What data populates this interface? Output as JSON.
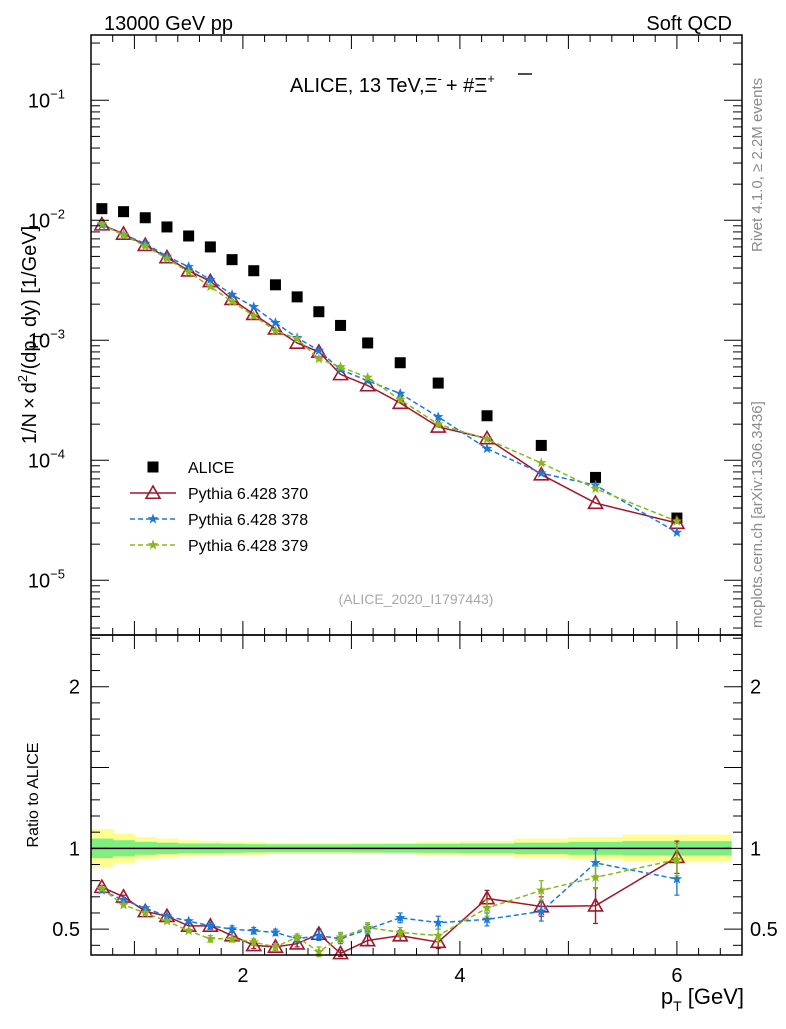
{
  "header": {
    "left": "13000 GeV pp",
    "right": "Soft QCD"
  },
  "side_labels": {
    "rivet": "Rivet 4.1.0, ≥ 2.2M events",
    "mcplots": "mcplots.cern.ch [arXiv:1306.3436]"
  },
  "chart_data": [
    {
      "type": "scatter",
      "title": "ALICE, 13 TeV, Ξ⁻ + #Ξ̅⁺",
      "title_parts": {
        "main": "ALICE, 13 TeV,",
        "xi": "Ξ",
        "sup1": "-",
        "plus": "+ #",
        "xibar": "Ξ",
        "sup2": "+"
      },
      "watermark": "(ALICE_2020_I1797443)",
      "ylabel": "1/N × d²/(dp_T dy) [1/GeV]",
      "ylabel_parts": {
        "a": "1/N",
        "times": "×",
        "b": "d",
        "sup": "2",
        "c": "/(dp",
        "sub": "T",
        "d": " dy) [1/GeV]"
      },
      "yscale": "log",
      "ylim": [
        3.5e-06,
        0.35
      ],
      "xlim": [
        0.6,
        6.6
      ],
      "ytick_labels": [
        {
          "value": 1e-05,
          "base": "10",
          "exp": "−5"
        },
        {
          "value": 0.0001,
          "base": "10",
          "exp": "−4"
        },
        {
          "value": 0.001,
          "base": "10",
          "exp": "−3"
        },
        {
          "value": 0.01,
          "base": "10",
          "exp": "−2"
        },
        {
          "value": 0.1,
          "base": "10",
          "exp": "−1"
        }
      ],
      "legend": {
        "position": "lower-left",
        "entries": [
          "ALICE",
          "Pythia 6.428 370",
          "Pythia 6.428 378",
          "Pythia 6.428 379"
        ]
      },
      "x": [
        0.7,
        0.9,
        1.1,
        1.3,
        1.5,
        1.7,
        1.9,
        2.1,
        2.3,
        2.5,
        2.7,
        2.9,
        3.15,
        3.45,
        3.8,
        4.25,
        4.75,
        5.25,
        6.0
      ],
      "series": [
        {
          "name": "ALICE",
          "color": "#000000",
          "marker": "square",
          "values": [
            0.0125,
            0.0118,
            0.0105,
            0.0088,
            0.0074,
            0.006,
            0.0047,
            0.0038,
            0.0029,
            0.0023,
            0.00173,
            0.00133,
            0.00095,
            0.00065,
            0.00044,
            0.000235,
            0.000133,
            7.2e-05,
            3.3e-05
          ]
        },
        {
          "name": "Pythia 6.428 370",
          "color": "#a0162c",
          "marker": "triangle",
          "line": "solid",
          "values": [
            0.0092,
            0.0077,
            0.0062,
            0.0049,
            0.0038,
            0.0031,
            0.0022,
            0.00165,
            0.00125,
            0.00095,
            0.0008,
            0.00052,
            0.00042,
            0.0003,
            0.00019,
            0.000152,
            7.6e-05,
            4.4e-05,
            3e-05
          ]
        },
        {
          "name": "Pythia 6.428 378",
          "color": "#1a79d9",
          "marker": "star",
          "line": "dashed",
          "values": [
            0.0091,
            0.0076,
            0.0064,
            0.005,
            0.0041,
            0.0032,
            0.0024,
            0.0019,
            0.0014,
            0.00105,
            0.00082,
            0.00057,
            0.00046,
            0.00036,
            0.00023,
            0.000125,
            7.8e-05,
            6.2e-05,
            2.5e-05
          ]
        },
        {
          "name": "Pythia 6.428 379",
          "color": "#8ab71e",
          "marker": "star",
          "line": "dashed",
          "values": [
            0.0093,
            0.0075,
            0.0061,
            0.0048,
            0.0037,
            0.0028,
            0.0021,
            0.0016,
            0.0012,
            0.00103,
            0.0007,
            0.0006,
            0.00049,
            0.00032,
            0.0002,
            0.00015,
            9.5e-05,
            5.8e-05,
            3.1e-05
          ]
        }
      ]
    },
    {
      "type": "line",
      "ylabel": "Ratio to ALICE",
      "xlabel_parts": {
        "p": "p",
        "sub": "T",
        "rest": " [GeV]"
      },
      "xlim": [
        0.6,
        6.6
      ],
      "ylim": [
        0.34,
        2.32
      ],
      "xtick_labels": [
        {
          "value": 2,
          "label": "2"
        },
        {
          "value": 4,
          "label": "4"
        },
        {
          "value": 6,
          "label": "6"
        }
      ],
      "ytick_labels": [
        {
          "value": 0.5,
          "label": "0.5"
        },
        {
          "value": 1,
          "label": "1"
        },
        {
          "value": 2,
          "label": "2"
        }
      ],
      "x": [
        0.7,
        0.9,
        1.1,
        1.3,
        1.5,
        1.7,
        1.9,
        2.1,
        2.3,
        2.5,
        2.7,
        2.9,
        3.15,
        3.45,
        3.8,
        4.25,
        4.75,
        5.25,
        6.0
      ],
      "bands": {
        "edges": [
          0.6,
          0.8,
          1.0,
          1.2,
          1.4,
          1.6,
          1.8,
          2.0,
          2.2,
          2.4,
          2.6,
          2.8,
          3.0,
          3.3,
          3.6,
          4.0,
          4.5,
          5.0,
          5.5,
          6.5
        ],
        "stat": [
          0.06,
          0.05,
          0.04,
          0.035,
          0.03,
          0.03,
          0.028,
          0.026,
          0.025,
          0.025,
          0.025,
          0.025,
          0.026,
          0.027,
          0.028,
          0.03,
          0.035,
          0.04,
          0.045
        ],
        "total": [
          0.12,
          0.09,
          0.07,
          0.06,
          0.05,
          0.045,
          0.04,
          0.04,
          0.035,
          0.035,
          0.035,
          0.035,
          0.035,
          0.035,
          0.04,
          0.045,
          0.06,
          0.07,
          0.085
        ],
        "stat_color": "#7ff07f",
        "total_color": "#fdfd90"
      },
      "series": [
        {
          "name": "Pythia 6.428 370",
          "color": "#a0162c",
          "marker": "triangle",
          "line": "solid",
          "values": [
            0.76,
            0.7,
            0.61,
            0.58,
            0.52,
            0.52,
            0.46,
            0.4,
            0.39,
            0.41,
            0.47,
            0.35,
            0.43,
            0.46,
            0.42,
            0.69,
            0.64,
            0.645,
            0.945
          ],
          "errors": [
            0.01,
            0.01,
            0.01,
            0.01,
            0.02,
            0.02,
            0.02,
            0.02,
            0.02,
            0.02,
            0.03,
            0.02,
            0.03,
            0.03,
            0.04,
            0.05,
            0.06,
            0.11,
            0.1
          ]
        },
        {
          "name": "Pythia 6.428 378",
          "color": "#1a79d9",
          "marker": "star",
          "line": "dashed",
          "values": [
            0.74,
            0.68,
            0.63,
            0.58,
            0.55,
            0.52,
            0.5,
            0.49,
            0.48,
            0.44,
            0.46,
            0.44,
            0.5,
            0.57,
            0.54,
            0.56,
            0.61,
            0.91,
            0.81
          ],
          "errors": [
            0.01,
            0.01,
            0.01,
            0.01,
            0.01,
            0.02,
            0.02,
            0.02,
            0.02,
            0.02,
            0.03,
            0.03,
            0.03,
            0.03,
            0.04,
            0.04,
            0.06,
            0.08,
            0.1
          ]
        },
        {
          "name": "Pythia 6.428 379",
          "color": "#8ab71e",
          "marker": "star",
          "line": "dashed",
          "values": [
            0.75,
            0.65,
            0.6,
            0.55,
            0.49,
            0.44,
            0.44,
            0.42,
            0.39,
            0.45,
            0.36,
            0.45,
            0.51,
            0.48,
            0.46,
            0.63,
            0.74,
            0.82,
            0.93
          ],
          "errors": [
            0.01,
            0.01,
            0.01,
            0.01,
            0.01,
            0.02,
            0.02,
            0.02,
            0.02,
            0.02,
            0.03,
            0.03,
            0.03,
            0.03,
            0.04,
            0.05,
            0.06,
            0.07,
            0.1
          ]
        }
      ]
    }
  ]
}
